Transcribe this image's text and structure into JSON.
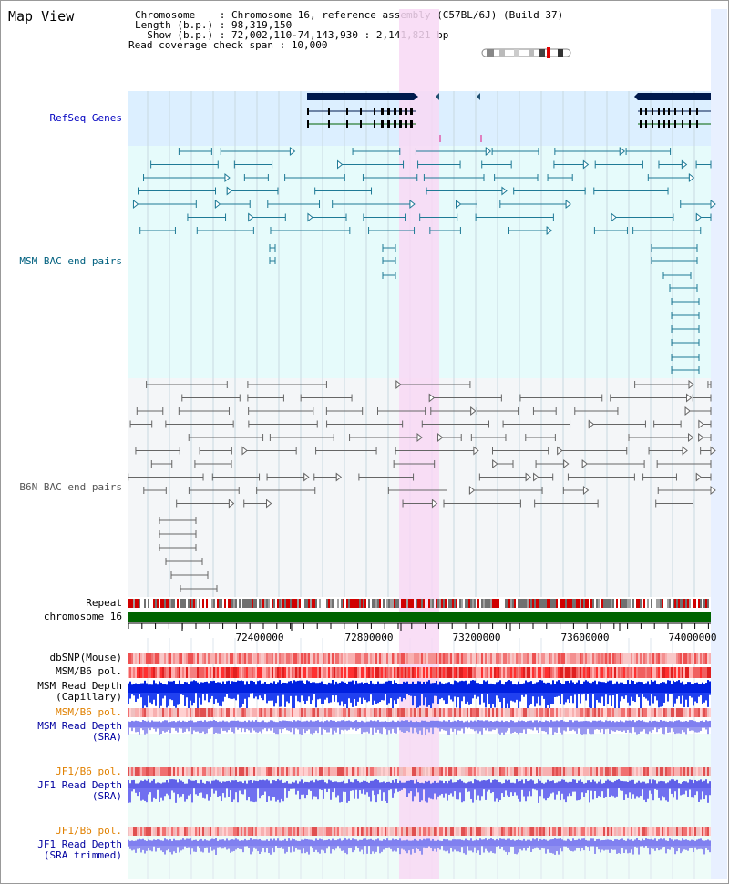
{
  "title": "Map View",
  "info": {
    "chromosome_line": "Chromosome    : Chromosome 16, reference assembly (C57BL/6J) (Build 37)",
    "length_line": "Length (b.p.) : 98,319,150",
    "show_line": "  Show (b.p.) : 72,002,110-74,143,930 : 2,141,821 bp",
    "span_line": "Read coverage check span : 10,000"
  },
  "tracks": {
    "refseq": "RefSeq Genes",
    "msm_bac": "MSM BAC end pairs",
    "b6n_bac": "B6N BAC end pairs",
    "repeat": "Repeat",
    "chromosome": "chromosome 16",
    "dbsnp": "dbSNP(Mouse)",
    "msm_b6_pol_1": "MSM/B6 pol.",
    "msm_read_depth_cap": "MSM Read Depth\n(Capillary)",
    "msm_b6_pol_2": "MSM/B6 pol.",
    "msm_read_depth_sra": "MSM Read Depth\n(SRA)",
    "jf1_b6_pol_1": "JF1/B6 pol.",
    "jf1_read_depth_sra": "JF1 Read Depth\n(SRA)",
    "jf1_b6_pol_2": "JF1/B6 pol.",
    "jf1_read_depth_trim": "JF1 Read Depth\n(SRA trimmed)"
  },
  "axis": {
    "ticks": [
      "72400000",
      "72800000",
      "73200000",
      "73600000",
      "74000000"
    ]
  },
  "colors": {
    "refseq_bg": "#dcefff",
    "msm_bg": "#e6fbfb",
    "b6n_bg": "#f4f6f8",
    "highlight": "#f8d8f4",
    "msm_label": "#00607f",
    "b6n_label": "#555555",
    "refseq_label": "#0000c0",
    "pol_label": "#e08000",
    "depth_label": "#0000a0",
    "chromosome_bar": "#006400"
  }
}
